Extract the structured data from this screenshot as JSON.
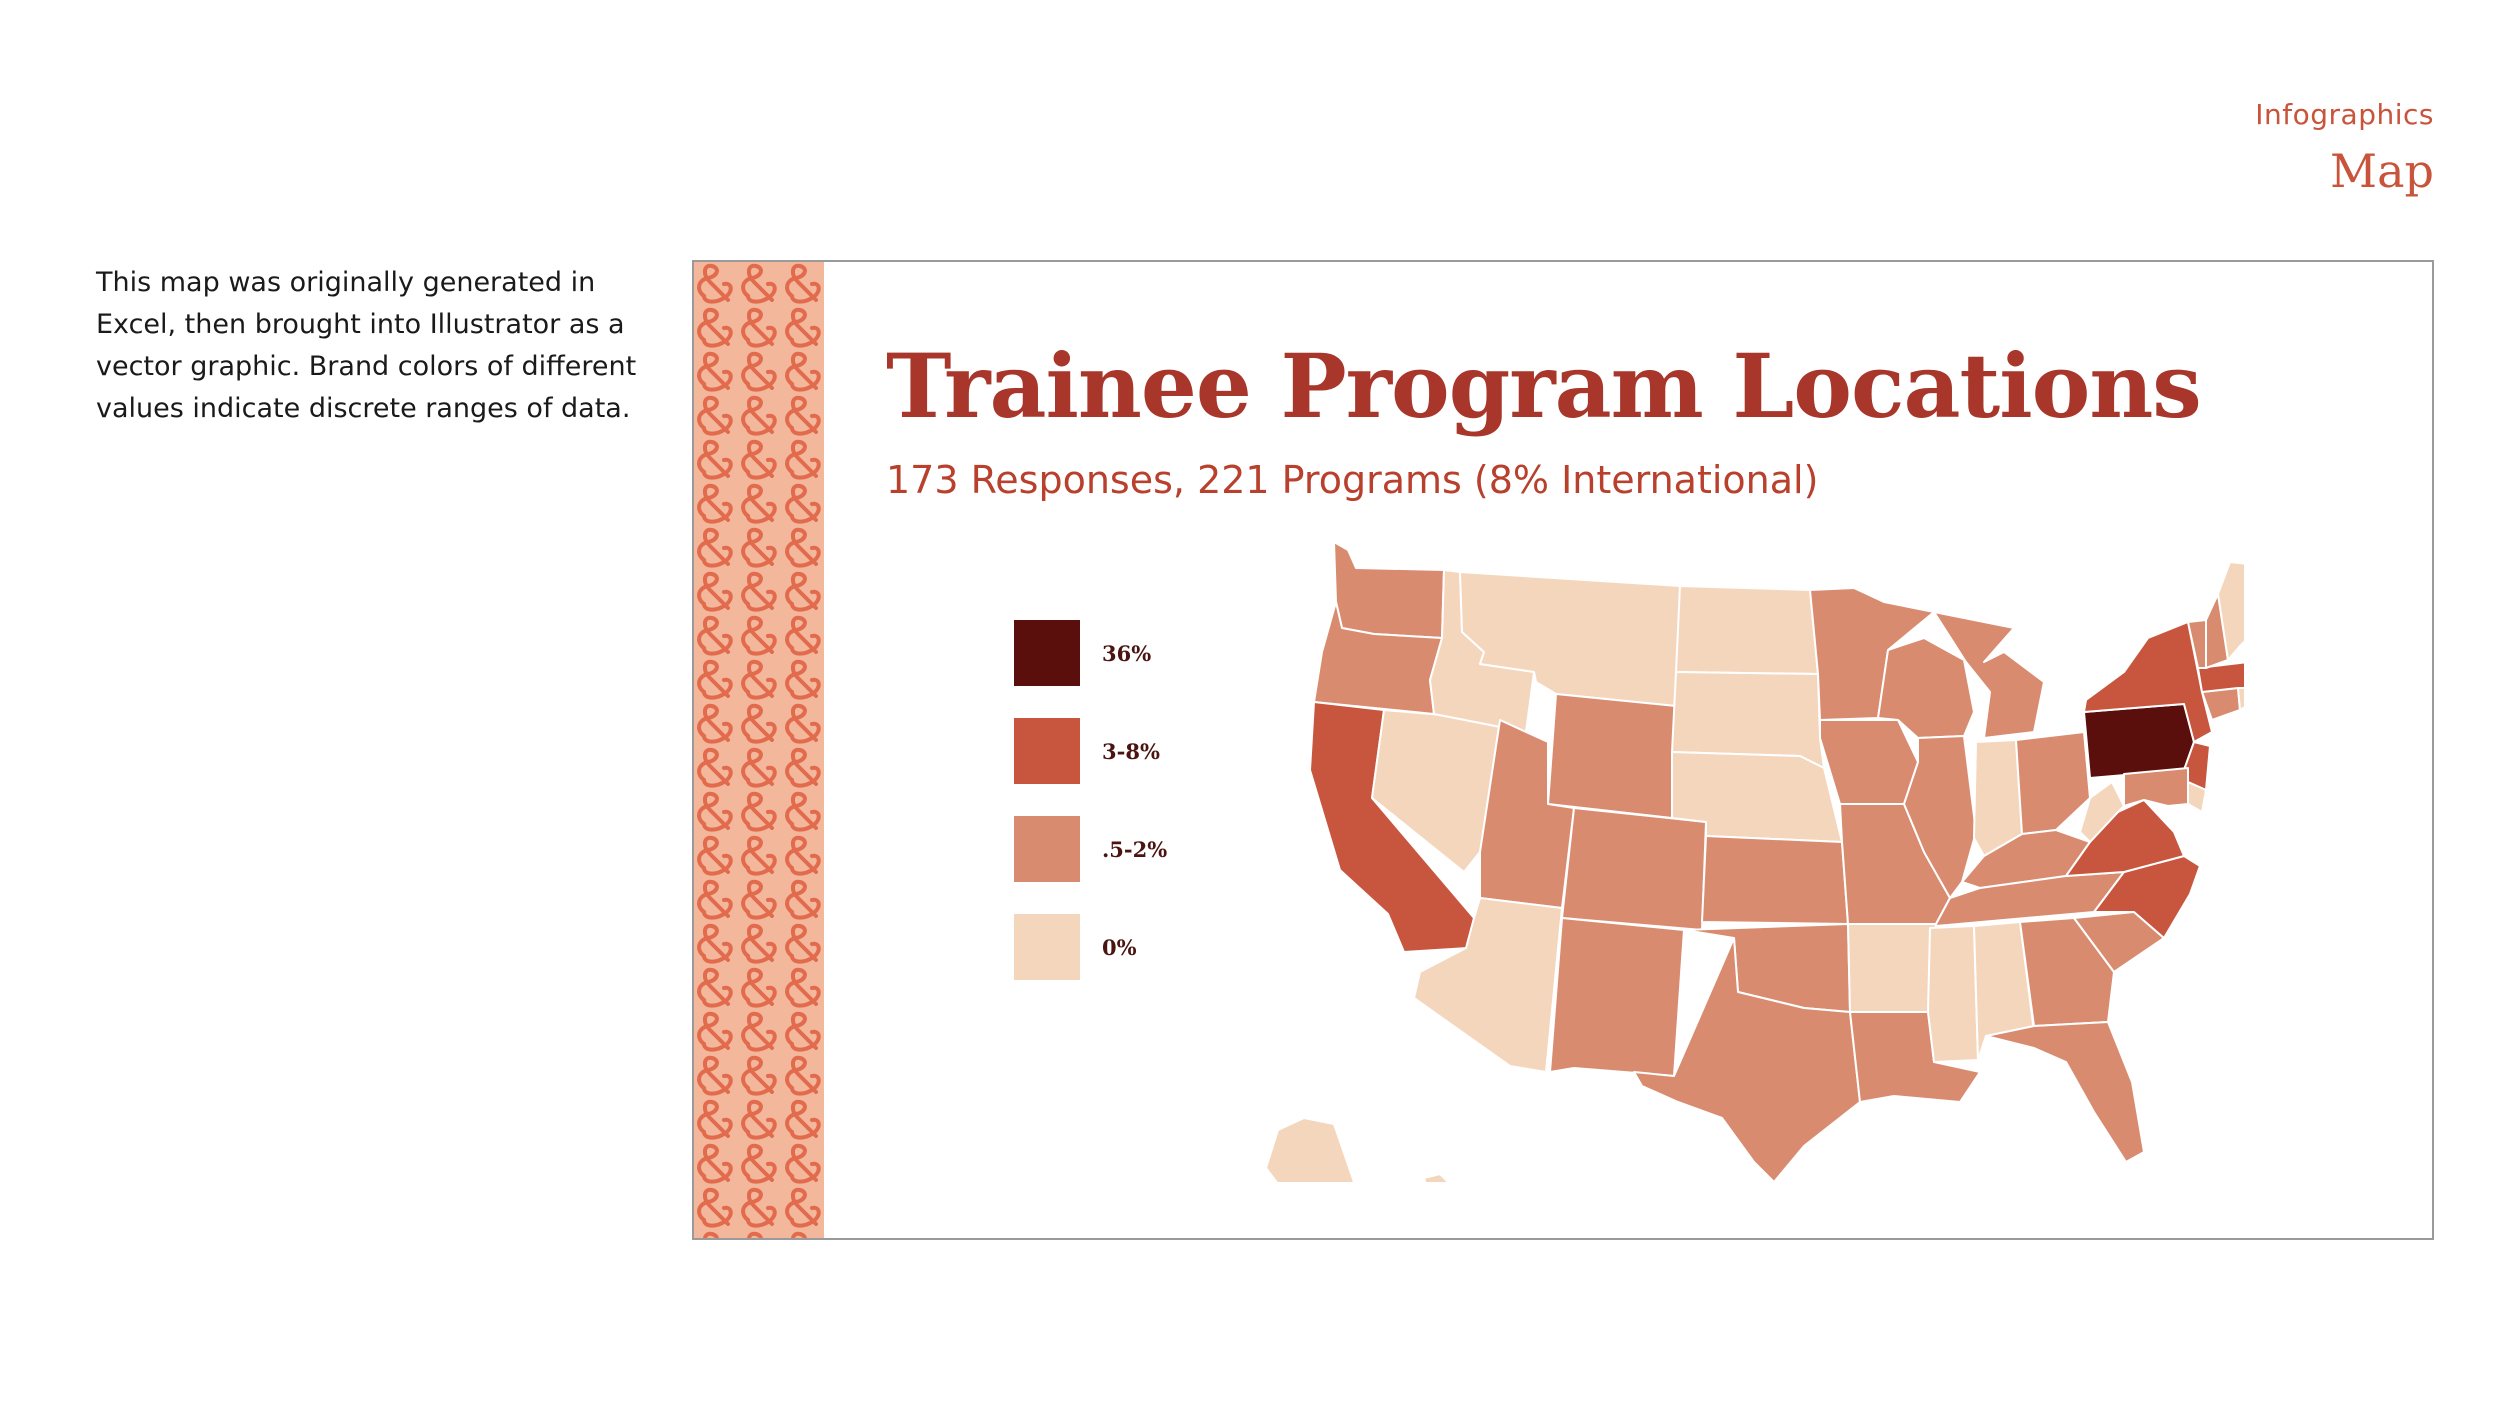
{
  "header": {
    "section": "Infographics",
    "title": "Map"
  },
  "description": "This map was originally generated in Excel, then brought into Illustrator as a vector graphic. Brand colors of different values indicate discrete ranges of data.",
  "infographic": {
    "title": "Trainee Program Locations",
    "subtitle": "173 Responses, 221 Programs (8% International)"
  },
  "legend": [
    {
      "label": "36%",
      "color": "#5a0f0c"
    },
    {
      "label": "3-8%",
      "color": "#c8553d"
    },
    {
      "label": ".5-2%",
      "color": "#d98b70"
    },
    {
      "label": "0%",
      "color": "#f4d6bd"
    }
  ],
  "colors": {
    "brand": "#a8362a",
    "accent": "#c8543c",
    "pattern_bg": "#f3b79c",
    "pattern_fg": "#e26a4d"
  },
  "map_data": {
    "bins": {
      "36%": [
        "PA"
      ],
      "3-8%": [
        "CA",
        "NY",
        "MA",
        "VA",
        "NC",
        "NJ"
      ],
      ".5-2%": [
        "WA",
        "OR",
        "WY",
        "UT",
        "CO",
        "NM",
        "TX",
        "KS",
        "OK",
        "MN",
        "IA",
        "MO",
        "WI",
        "IL",
        "MI",
        "OH",
        "KY",
        "TN",
        "GA",
        "SC",
        "FL",
        "LA",
        "VT",
        "NH",
        "CT",
        "MD"
      ],
      "0%": [
        "ID",
        "MT",
        "NV",
        "AZ",
        "ND",
        "SD",
        "NE",
        "AR",
        "MS",
        "AL",
        "IN",
        "WV",
        "ME",
        "DE",
        "RI",
        "AK",
        "HI"
      ]
    }
  }
}
